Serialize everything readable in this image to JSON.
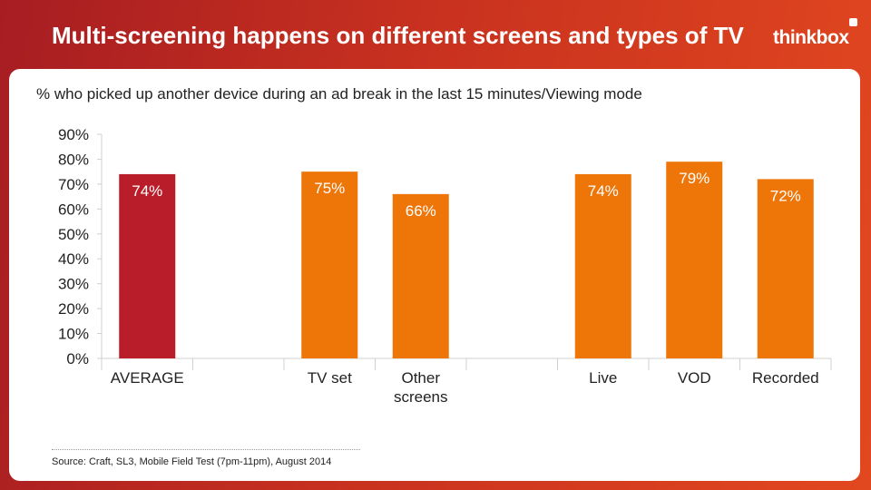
{
  "header": {
    "title": "Multi-screening happens on different screens and types of TV",
    "logo_text": "thinkbox"
  },
  "colors": {
    "average_bar": "#b91d2a",
    "bar": "#ee7508",
    "label_text": "#ffffff",
    "axis_text": "#222222"
  },
  "chart_data": {
    "type": "bar",
    "title": "% who picked up another device during an ad break in the last 15 minutes/Viewing mode",
    "xlabel": "",
    "ylabel": "",
    "ylim": [
      0,
      90
    ],
    "yticks": [
      0,
      10,
      20,
      30,
      40,
      50,
      60,
      70,
      80,
      90
    ],
    "tick_format": "{v}%",
    "categories": [
      "AVERAGE",
      "",
      "TV set",
      "Other screens",
      "",
      "Live",
      "VOD",
      "Recorded"
    ],
    "category_lines": [
      [
        "AVERAGE"
      ],
      [],
      [
        "TV set"
      ],
      [
        "Other",
        "screens"
      ],
      [],
      [
        "Live"
      ],
      [
        "VOD"
      ],
      [
        "Recorded"
      ]
    ],
    "values": [
      74,
      null,
      75,
      66,
      null,
      74,
      79,
      72
    ],
    "data_labels": [
      "74%",
      "",
      "75%",
      "66%",
      "",
      "74%",
      "79%",
      "72%"
    ],
    "highlight_index": 0,
    "legend": "none",
    "grid": false
  },
  "footer": {
    "source": "Source: Craft, SL3, Mobile Field Test (7pm-11pm), August 2014"
  }
}
